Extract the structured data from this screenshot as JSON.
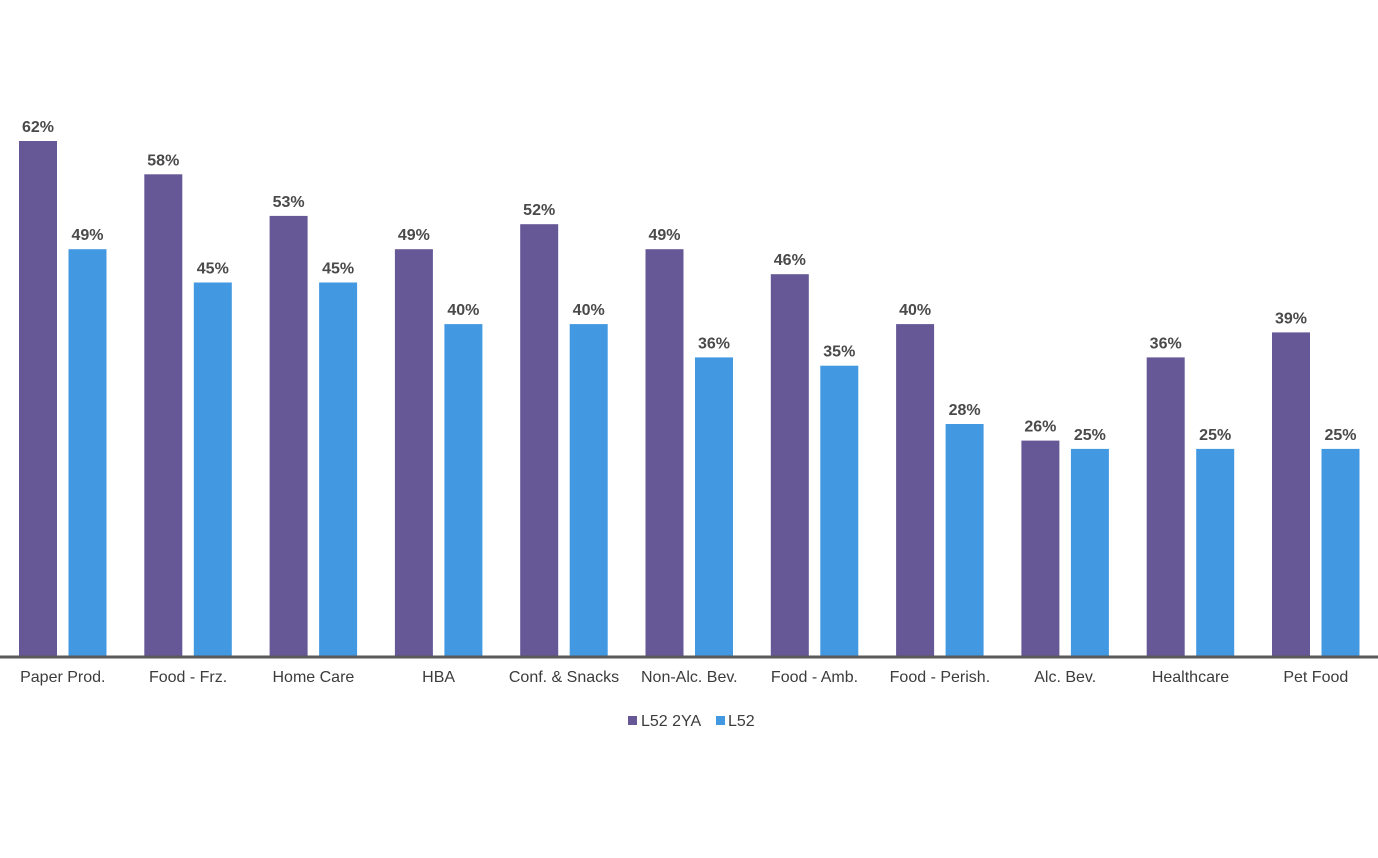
{
  "chart_data": {
    "type": "bar",
    "categories": [
      "Paper Prod.",
      "Food - Frz.",
      "Home Care",
      "HBA",
      "Conf. & Snacks",
      "Non-Alc. Bev.",
      "Food - Amb.",
      "Food - Perish.",
      "Alc. Bev.",
      "Healthcare",
      "Pet Food"
    ],
    "series": [
      {
        "name": "L52 2YA",
        "color": "#665796",
        "values": [
          62,
          58,
          53,
          49,
          52,
          49,
          46,
          40,
          26,
          36,
          39
        ],
        "labels": [
          "62%",
          "58%",
          "53%",
          "49%",
          "52%",
          "49%",
          "46%",
          "40%",
          "26%",
          "36%",
          "39%"
        ]
      },
      {
        "name": "L52",
        "color": "#4398e2",
        "values": [
          49,
          45,
          45,
          40,
          40,
          36,
          35,
          28,
          25,
          25,
          25
        ],
        "labels": [
          "49%",
          "45%",
          "45%",
          "40%",
          "40%",
          "36%",
          "35%",
          "28%",
          "25%",
          "25%",
          "25%"
        ]
      }
    ],
    "ylim": [
      0,
      62
    ],
    "grid": false,
    "legend_position": "bottom-center",
    "axis_color": "#5a5a5a"
  }
}
